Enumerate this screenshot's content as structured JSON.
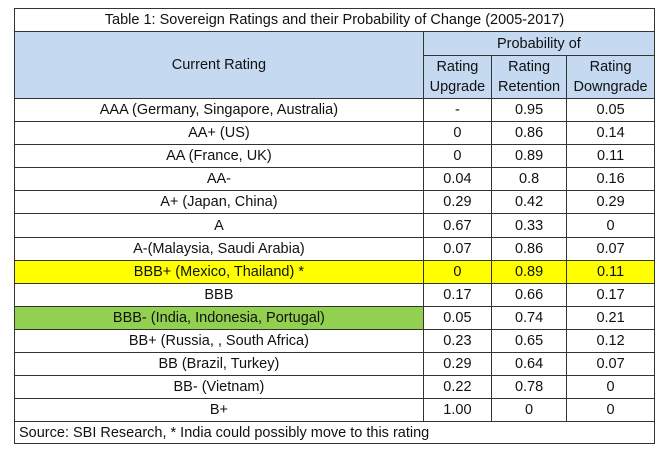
{
  "table": {
    "title": "Table 1: Sovereign Ratings and their Probability of Change (2005-2017)",
    "header_rating": "Current Rating",
    "header_prob": "Probability of",
    "sub_headers": [
      {
        "line1": "Rating",
        "line2": "Upgrade"
      },
      {
        "line1": "Rating",
        "line2": "Retention"
      },
      {
        "line1": "Rating",
        "line2": "Downgrade"
      }
    ],
    "rows": [
      {
        "rating": "AAA (Germany, Singapore, Australia)",
        "upgrade": "-",
        "retention": "0.95",
        "downgrade": "0.05",
        "highlight": ""
      },
      {
        "rating": "AA+ (US)",
        "upgrade": "0",
        "retention": "0.86",
        "downgrade": "0.14",
        "highlight": ""
      },
      {
        "rating": "AA (France, UK)",
        "upgrade": "0",
        "retention": "0.89",
        "downgrade": "0.11",
        "highlight": ""
      },
      {
        "rating": "AA-",
        "upgrade": "0.04",
        "retention": "0.8",
        "downgrade": "0.16",
        "highlight": ""
      },
      {
        "rating": "A+ (Japan, China)",
        "upgrade": "0.29",
        "retention": "0.42",
        "downgrade": "0.29",
        "highlight": ""
      },
      {
        "rating": "A",
        "upgrade": "0.67",
        "retention": "0.33",
        "downgrade": "0",
        "highlight": ""
      },
      {
        "rating": "A-(Malaysia, Saudi Arabia)",
        "upgrade": "0.07",
        "retention": "0.86",
        "downgrade": "0.07",
        "highlight": ""
      },
      {
        "rating": "BBB+ (Mexico, Thailand) *",
        "upgrade": "0",
        "retention": "0.89",
        "downgrade": "0.11",
        "highlight": "#ffff00"
      },
      {
        "rating": "BBB",
        "upgrade": "0.17",
        "retention": "0.66",
        "downgrade": "0.17",
        "highlight": ""
      },
      {
        "rating": "BBB- (India, Indonesia, Portugal)",
        "upgrade": "0.05",
        "retention": "0.74",
        "downgrade": "0.21",
        "highlight": "#92d050",
        "highlight_first_only": true
      },
      {
        "rating": "BB+ (Russia, , South Africa)",
        "upgrade": "0.23",
        "retention": "0.65",
        "downgrade": "0.12",
        "highlight": ""
      },
      {
        "rating": "BB (Brazil, Turkey)",
        "upgrade": "0.29",
        "retention": "0.64",
        "downgrade": "0.07",
        "highlight": ""
      },
      {
        "rating": "BB- (Vietnam)",
        "upgrade": "0.22",
        "retention": "0.78",
        "downgrade": "0",
        "highlight": ""
      },
      {
        "rating": "B+",
        "upgrade": "1.00",
        "retention": "0",
        "downgrade": "0",
        "highlight": ""
      }
    ],
    "source": "Source: SBI Research, * India could possibly move to this rating"
  },
  "colors": {
    "header_bg": "#c5d9f1",
    "yellow": "#ffff00",
    "green": "#92d050"
  }
}
